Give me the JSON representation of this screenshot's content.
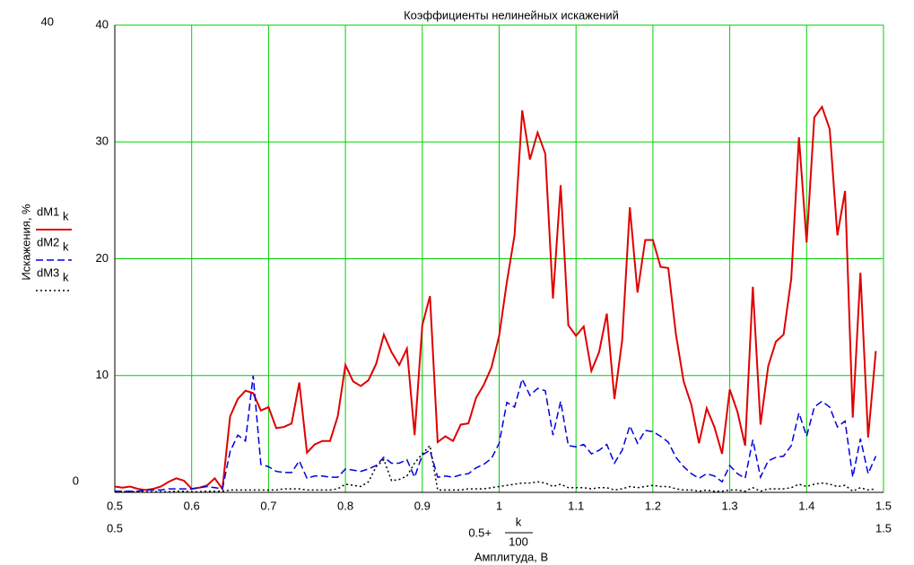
{
  "chart_data": {
    "type": "line",
    "title": "Коэффициенты нелинейных искажений",
    "y_label": "Искажения, %",
    "x_label": "Амплитуда, В",
    "x_label_expression": {
      "prefix": "0.5+",
      "numerator": "k",
      "denominator": "100"
    },
    "legend_subscript": "k",
    "grid": true,
    "xlim": [
      0.5,
      1.5
    ],
    "ylim": [
      0,
      40
    ],
    "xticks": [
      0.5,
      0.6,
      0.7,
      0.8,
      0.9,
      1,
      1.1,
      1.2,
      1.3,
      1.4,
      1.5
    ],
    "yticks": [
      10,
      20,
      30,
      40
    ],
    "x": [
      0.5,
      0.51,
      0.52,
      0.53,
      0.54,
      0.55,
      0.56,
      0.57,
      0.58,
      0.59,
      0.6,
      0.61,
      0.62,
      0.63,
      0.64,
      0.65,
      0.66,
      0.67,
      0.68,
      0.69,
      0.7,
      0.71,
      0.72,
      0.73,
      0.74,
      0.75,
      0.76,
      0.77,
      0.78,
      0.79,
      0.8,
      0.81,
      0.82,
      0.83,
      0.84,
      0.85,
      0.86,
      0.87,
      0.88,
      0.89,
      0.9,
      0.91,
      0.92,
      0.93,
      0.94,
      0.95,
      0.96,
      0.97,
      0.98,
      0.99,
      1,
      1.01,
      1.02,
      1.03,
      1.04,
      1.05,
      1.06,
      1.07,
      1.08,
      1.09,
      1.1,
      1.11,
      1.12,
      1.13,
      1.14,
      1.15,
      1.16,
      1.17,
      1.18,
      1.19,
      1.2,
      1.21,
      1.22,
      1.23,
      1.24,
      1.25,
      1.26,
      1.27,
      1.28,
      1.29,
      1.3,
      1.31,
      1.32,
      1.33,
      1.34,
      1.35,
      1.36,
      1.37,
      1.38,
      1.39,
      1.4,
      1.41,
      1.42,
      1.43,
      1.44,
      1.45,
      1.46,
      1.47,
      1.48,
      1.49
    ],
    "series": [
      {
        "name": "dM1",
        "color": "#e00000",
        "dash": "solid",
        "values": [
          0.5,
          0.4,
          0.5,
          0.3,
          0.2,
          0.3,
          0.5,
          0.9,
          1.2,
          1.0,
          0.3,
          0.4,
          0.6,
          1.2,
          0.3,
          6.5,
          8.0,
          8.7,
          8.5,
          7.0,
          7.3,
          5.5,
          5.6,
          5.9,
          9.4,
          3.4,
          4.1,
          4.4,
          4.4,
          6.5,
          10.9,
          9.5,
          9.1,
          9.6,
          11.0,
          13.5,
          12.0,
          10.9,
          12.3,
          4.9,
          14.3,
          16.8,
          4.3,
          4.8,
          4.4,
          5.8,
          5.9,
          8.1,
          9.2,
          10.7,
          13.4,
          18.0,
          22.0,
          32.7,
          28.5,
          30.8,
          29.0,
          16.6,
          26.3,
          14.3,
          13.4,
          14.2,
          10.4,
          12.0,
          15.3,
          8.0,
          13.0,
          24.4,
          17.1,
          21.6,
          21.6,
          19.3,
          19.2,
          13.5,
          9.5,
          7.5,
          4.2,
          7.2,
          5.6,
          3.3,
          8.8,
          6.9,
          4.0,
          17.6,
          5.8,
          10.8,
          12.9,
          13.5,
          18.3,
          30.4,
          21.4,
          32.1,
          33.0,
          31.1,
          22.0,
          25.8,
          6.4,
          18.8,
          4.7,
          12.1
        ]
      },
      {
        "name": "dM2",
        "color": "#0000e0",
        "dash": "dashed",
        "values": [
          0.1,
          0.1,
          0.1,
          0.1,
          0.2,
          0.2,
          0.2,
          0.3,
          0.3,
          0.3,
          0.3,
          0.4,
          0.5,
          0.4,
          0.3,
          3.5,
          4.9,
          4.4,
          10.0,
          2.4,
          2.2,
          1.8,
          1.7,
          1.7,
          2.7,
          1.2,
          1.4,
          1.4,
          1.3,
          1.3,
          2.0,
          1.9,
          1.8,
          2.0,
          2.3,
          3.0,
          2.5,
          2.5,
          2.8,
          1.3,
          3.2,
          3.6,
          1.3,
          1.4,
          1.3,
          1.5,
          1.6,
          2.1,
          2.4,
          2.9,
          4.2,
          7.7,
          7.3,
          9.7,
          8.3,
          8.9,
          8.7,
          4.9,
          7.8,
          4.0,
          3.9,
          4.1,
          3.3,
          3.6,
          4.1,
          2.5,
          3.6,
          5.7,
          4.2,
          5.3,
          5.2,
          4.8,
          4.3,
          3.0,
          2.2,
          1.6,
          1.2,
          1.6,
          1.4,
          0.9,
          2.3,
          1.6,
          1.2,
          4.5,
          1.3,
          2.7,
          3.0,
          3.1,
          4.0,
          6.8,
          4.8,
          7.3,
          7.8,
          7.3,
          5.6,
          6.1,
          1.3,
          4.6,
          1.6,
          3.1
        ]
      },
      {
        "name": "dM3",
        "color": "#000000",
        "dash": "dotted",
        "values": [
          0.05,
          0.05,
          0.05,
          0.05,
          0.05,
          0.05,
          0.05,
          0.05,
          0.1,
          0.1,
          0.05,
          0.05,
          0.1,
          0.1,
          0.1,
          0.2,
          0.2,
          0.2,
          0.2,
          0.2,
          0.2,
          0.2,
          0.3,
          0.3,
          0.3,
          0.2,
          0.2,
          0.2,
          0.2,
          0.3,
          0.7,
          0.6,
          0.5,
          0.9,
          2.2,
          2.8,
          1.0,
          1.1,
          1.4,
          2.5,
          3.3,
          4.0,
          0.2,
          0.2,
          0.2,
          0.2,
          0.3,
          0.3,
          0.3,
          0.4,
          0.5,
          0.6,
          0.7,
          0.8,
          0.8,
          0.9,
          0.8,
          0.5,
          0.7,
          0.4,
          0.4,
          0.4,
          0.3,
          0.4,
          0.4,
          0.2,
          0.3,
          0.5,
          0.4,
          0.5,
          0.6,
          0.5,
          0.5,
          0.3,
          0.2,
          0.2,
          0.1,
          0.2,
          0.1,
          0.1,
          0.2,
          0.2,
          0.1,
          0.4,
          0.1,
          0.3,
          0.3,
          0.3,
          0.4,
          0.7,
          0.5,
          0.7,
          0.8,
          0.7,
          0.5,
          0.6,
          0.1,
          0.4,
          0.2,
          0.3
        ]
      }
    ]
  }
}
